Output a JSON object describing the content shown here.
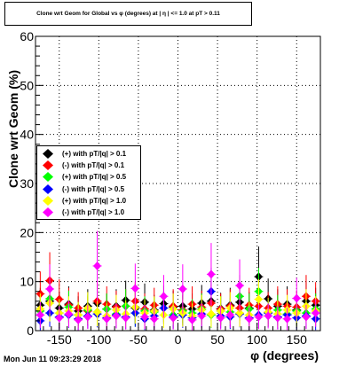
{
  "title": "Clone wrt Geom for Global vs φ (degrees) at | η | <= 1.0 at pT > 0.11",
  "footer": "Mon Jun 11 09:23:29 2018",
  "chart_data": {
    "type": "scatter",
    "xlabel": "φ (degrees)",
    "ylabel": "Clone wrt Geom (%)",
    "xlim": [
      -180,
      180
    ],
    "ylim": [
      0,
      60
    ],
    "xticks": [
      -150,
      -100,
      -50,
      0,
      50,
      100,
      150
    ],
    "yticks": [
      0,
      10,
      20,
      30,
      40,
      50,
      60
    ],
    "grid": true,
    "legend_position": "left-middle",
    "series": [
      {
        "name": "(+) with pT/|q| > 0.1",
        "color": "#000000",
        "x": [
          -174,
          -162,
          -150,
          -138,
          -126,
          -114,
          -102,
          -90,
          -78,
          -66,
          -54,
          -42,
          -30,
          -18,
          -6,
          6,
          18,
          30,
          42,
          54,
          66,
          78,
          90,
          102,
          114,
          126,
          138,
          150,
          162,
          174
        ],
        "y": [
          5.2,
          6.0,
          4.6,
          5.4,
          4.0,
          5.0,
          5.6,
          4.4,
          5.0,
          6.2,
          4.6,
          5.8,
          4.2,
          5.5,
          4.8,
          5.0,
          4.4,
          5.6,
          6.0,
          4.5,
          5.2,
          5.8,
          4.6,
          11.0,
          6.5,
          5.0,
          5.4,
          4.2,
          6.0,
          5.2
        ]
      },
      {
        "name": "(-) with pT/|q| > 0.1",
        "color": "#ff0000",
        "x": [
          -174,
          -162,
          -150,
          -138,
          -126,
          -114,
          -102,
          -90,
          -78,
          -66,
          -54,
          -42,
          -30,
          -18,
          -6,
          6,
          18,
          30,
          42,
          54,
          66,
          78,
          90,
          102,
          114,
          126,
          138,
          150,
          162,
          174
        ],
        "y": [
          7.5,
          10.2,
          6.4,
          5.2,
          4.6,
          4.0,
          6.0,
          5.4,
          4.8,
          5.0,
          6.0,
          4.4,
          5.2,
          4.6,
          5.0,
          4.2,
          5.4,
          4.8,
          5.6,
          4.4,
          5.0,
          4.6,
          5.2,
          5.0,
          4.6,
          5.4,
          5.0,
          4.8,
          7.0,
          6.0
        ]
      },
      {
        "name": "(+) with pT/|q| > 0.5",
        "color": "#00ff00",
        "x": [
          -174,
          -162,
          -150,
          -138,
          -126,
          -114,
          -102,
          -90,
          -78,
          -66,
          -54,
          -42,
          -30,
          -18,
          -6,
          6,
          18,
          30,
          42,
          54,
          66,
          78,
          90,
          102,
          114,
          126,
          138,
          150,
          162,
          174
        ],
        "y": [
          4.0,
          6.5,
          3.6,
          4.8,
          3.2,
          4.2,
          3.8,
          4.4,
          3.4,
          5.0,
          3.6,
          4.0,
          3.8,
          4.6,
          3.2,
          4.0,
          3.6,
          4.4,
          3.2,
          4.0,
          3.8,
          7.0,
          4.4,
          8.0,
          3.6,
          4.2,
          3.4,
          4.0,
          3.6,
          4.4
        ]
      },
      {
        "name": "(-) with pT/|q| > 0.5",
        "color": "#0000ff",
        "x": [
          -174,
          -162,
          -150,
          -138,
          -126,
          -114,
          -102,
          -90,
          -78,
          -66,
          -54,
          -42,
          -30,
          -18,
          -6,
          6,
          18,
          30,
          42,
          54,
          66,
          78,
          90,
          102,
          114,
          126,
          138,
          150,
          162,
          174
        ],
        "y": [
          2.0,
          3.6,
          2.8,
          3.2,
          2.4,
          3.0,
          3.4,
          2.6,
          3.2,
          2.8,
          3.6,
          2.4,
          3.0,
          4.6,
          2.8,
          3.2,
          2.6,
          3.4,
          8.0,
          3.0,
          2.8,
          3.4,
          2.6,
          3.2,
          3.6,
          2.8,
          3.2,
          2.6,
          3.0,
          2.4
        ]
      },
      {
        "name": "(+) with pT/|q| > 1.0",
        "color": "#ffff00",
        "x": [
          -174,
          -162,
          -150,
          -138,
          -126,
          -114,
          -102,
          -90,
          -78,
          -66,
          -54,
          -42,
          -30,
          -18,
          -6,
          6,
          18,
          30,
          42,
          54,
          66,
          78,
          90,
          102,
          114,
          126,
          138,
          150,
          162,
          174
        ],
        "y": [
          4.4,
          5.6,
          3.6,
          4.0,
          3.2,
          4.6,
          3.8,
          3.0,
          4.2,
          3.4,
          4.8,
          3.6,
          4.0,
          3.2,
          4.4,
          3.6,
          3.0,
          4.2,
          3.4,
          4.0,
          4.6,
          3.6,
          3.2,
          6.4,
          3.8,
          3.4,
          4.2,
          3.6,
          5.0,
          4.0
        ]
      },
      {
        "name": "(-) with pT/|q| > 1.0",
        "color": "#ff00ff",
        "x": [
          -174,
          -162,
          -150,
          -138,
          -126,
          -114,
          -102,
          -90,
          -78,
          -66,
          -54,
          -42,
          -30,
          -18,
          -6,
          6,
          18,
          30,
          42,
          54,
          66,
          78,
          90,
          102,
          114,
          126,
          138,
          150,
          162,
          174
        ],
        "y": [
          3.2,
          8.5,
          2.6,
          3.4,
          2.2,
          2.8,
          13.2,
          2.4,
          3.0,
          2.6,
          8.6,
          2.8,
          2.4,
          7.0,
          2.6,
          8.5,
          2.2,
          3.0,
          11.5,
          2.6,
          3.2,
          9.2,
          2.4,
          2.8,
          3.0,
          2.6,
          2.4,
          6.6,
          2.8,
          3.6
        ]
      }
    ]
  }
}
